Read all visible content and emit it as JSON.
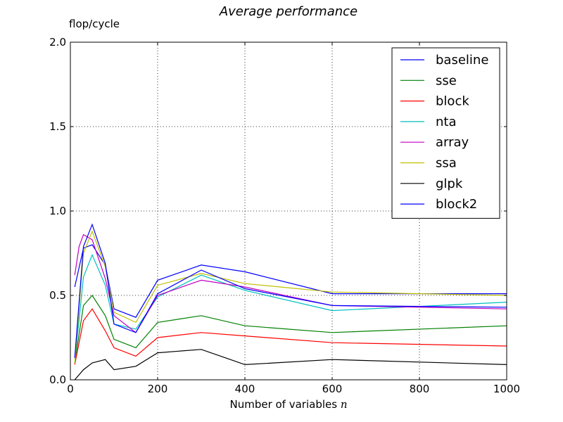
{
  "chart_data": {
    "type": "line",
    "title": "Average performance",
    "ylabel": "flop/cycle",
    "xlabel": "Number of variables",
    "xlabel_var": "n",
    "xlim": [
      0,
      1000
    ],
    "ylim": [
      0.0,
      2.0
    ],
    "xticks": [
      "0",
      "200",
      "400",
      "600",
      "800",
      "1000"
    ],
    "xtick_values": [
      0,
      200,
      400,
      600,
      800,
      1000
    ],
    "yticks": [
      "0.0",
      "0.5",
      "1.0",
      "1.5",
      "2.0"
    ],
    "ytick_values": [
      0.0,
      0.5,
      1.0,
      1.5,
      2.0
    ],
    "grid": true,
    "legend_position": "top-right",
    "series": [
      {
        "name": "baseline",
        "color": "#0000ff",
        "x": [
          10,
          30,
          50,
          80,
          100,
          150,
          200,
          300,
          400,
          600,
          1000
        ],
        "y": [
          0.55,
          0.78,
          0.8,
          0.68,
          0.42,
          0.37,
          0.59,
          0.68,
          0.64,
          0.51,
          0.51
        ]
      },
      {
        "name": "sse",
        "color": "#008000",
        "x": [
          10,
          30,
          50,
          80,
          100,
          150,
          200,
          300,
          400,
          600,
          1000
        ],
        "y": [
          0.1,
          0.44,
          0.5,
          0.38,
          0.24,
          0.19,
          0.34,
          0.38,
          0.32,
          0.28,
          0.32
        ]
      },
      {
        "name": "block",
        "color": "#ff0000",
        "x": [
          10,
          30,
          50,
          80,
          100,
          150,
          200,
          300,
          400,
          600,
          1000
        ],
        "y": [
          0.09,
          0.35,
          0.42,
          0.29,
          0.19,
          0.14,
          0.25,
          0.28,
          0.26,
          0.22,
          0.2
        ]
      },
      {
        "name": "nta",
        "color": "#00bfbf",
        "x": [
          10,
          30,
          50,
          80,
          100,
          150,
          200,
          300,
          400,
          600,
          1000
        ],
        "y": [
          0.1,
          0.61,
          0.74,
          0.56,
          0.33,
          0.3,
          0.49,
          0.62,
          0.53,
          0.41,
          0.46
        ]
      },
      {
        "name": "array",
        "color": "#bf00bf",
        "x": [
          10,
          20,
          30,
          50,
          80,
          100,
          150,
          200,
          300,
          400,
          600,
          1000
        ],
        "y": [
          0.62,
          0.79,
          0.86,
          0.83,
          0.6,
          0.38,
          0.28,
          0.5,
          0.59,
          0.55,
          0.44,
          0.42
        ]
      },
      {
        "name": "ssa",
        "color": "#bfbf00",
        "x": [
          10,
          30,
          50,
          80,
          100,
          150,
          200,
          300,
          400,
          600,
          1000
        ],
        "y": [
          0.1,
          0.75,
          0.88,
          0.67,
          0.4,
          0.34,
          0.56,
          0.63,
          0.57,
          0.52,
          0.5
        ]
      },
      {
        "name": "glpk",
        "color": "#000000",
        "x": [
          10,
          30,
          50,
          80,
          100,
          150,
          200,
          300,
          400,
          600,
          1000
        ],
        "y": [
          0.0,
          0.06,
          0.1,
          0.12,
          0.06,
          0.08,
          0.16,
          0.18,
          0.09,
          0.12,
          0.09
        ]
      },
      {
        "name": "block2",
        "color": "#0000ff",
        "x": [
          10,
          30,
          50,
          80,
          100,
          150,
          200,
          300,
          400,
          600,
          1000
        ],
        "y": [
          0.13,
          0.79,
          0.92,
          0.69,
          0.33,
          0.28,
          0.51,
          0.65,
          0.54,
          0.44,
          0.43
        ]
      }
    ]
  }
}
